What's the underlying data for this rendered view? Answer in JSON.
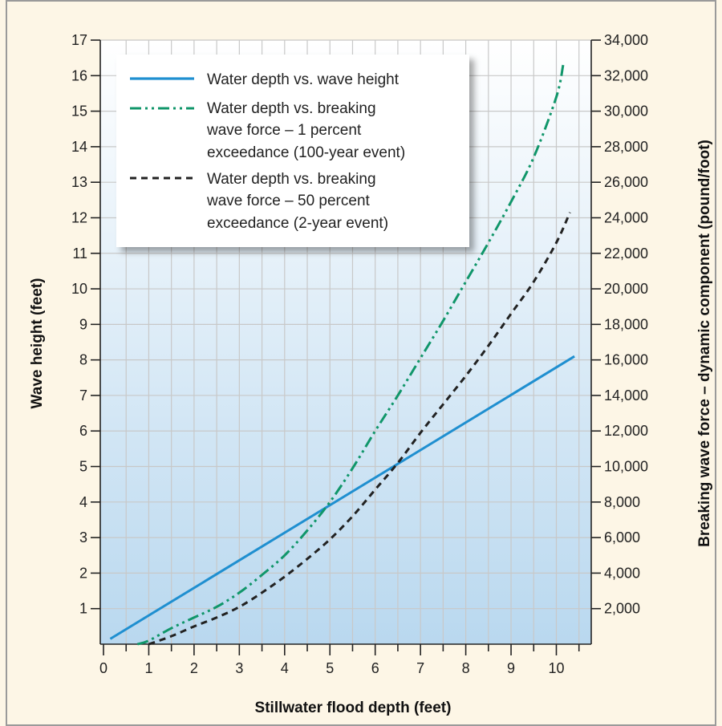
{
  "chart_data": {
    "type": "line",
    "xlabel": "Stillwater flood depth (feet)",
    "ylabel_left": "Wave height (feet)",
    "ylabel_right": "Breaking wave force – dynamic component (pound/foot)",
    "xlim": [
      0,
      10.7
    ],
    "ylim_left": [
      0,
      17
    ],
    "ylim_right": [
      0,
      34000
    ],
    "x_ticks": [
      "0",
      "1",
      "2",
      "3",
      "4",
      "5",
      "6",
      "7",
      "8",
      "9",
      "10"
    ],
    "y_left_ticks": [
      "1",
      "2",
      "3",
      "4",
      "5",
      "6",
      "7",
      "8",
      "9",
      "10",
      "11",
      "12",
      "13",
      "14",
      "15",
      "16",
      "17"
    ],
    "y_right_ticks": [
      "2,000",
      "4,000",
      "6,000",
      "8,000",
      "10,000",
      "12,000",
      "14,000",
      "16,000",
      "18,000",
      "20,000",
      "22,000",
      "24,000",
      "26,000",
      "28,000",
      "30,000",
      "32,000",
      "34,000"
    ],
    "grid": true,
    "legend_position": "top-left",
    "series": [
      {
        "name": "Water depth vs. wave height",
        "axis": "left",
        "style": "solid",
        "color": "#1f8fd0",
        "x": [
          0.15,
          10.4
        ],
        "y": [
          0.15,
          8.1
        ]
      },
      {
        "name_lines": [
          "Water depth vs. breaking",
          "wave force – 1 percent",
          "exceedance (100-year event)"
        ],
        "axis": "right",
        "style": "dash-dot-dot",
        "color": "#10966a",
        "x": [
          0.75,
          1.0,
          1.5,
          2.0,
          2.5,
          3.0,
          3.5,
          4.0,
          4.5,
          5.0,
          5.5,
          6.0,
          6.5,
          7.0,
          7.5,
          8.0,
          8.5,
          9.0,
          9.5,
          10.0,
          10.15
        ],
        "y": [
          0,
          200,
          900,
          1500,
          2100,
          2900,
          3900,
          5000,
          6400,
          8000,
          9900,
          12000,
          14000,
          16100,
          18200,
          20400,
          22600,
          24900,
          27400,
          30800,
          32600
        ]
      },
      {
        "name_lines": [
          "Water depth vs. breaking",
          "wave force – 50 percent",
          "exceedance (2-year event)"
        ],
        "axis": "right",
        "style": "dashed",
        "color": "#222222",
        "x": [
          1.0,
          1.5,
          2.0,
          2.5,
          3.0,
          3.5,
          4.0,
          4.5,
          5.0,
          5.5,
          6.0,
          6.5,
          7.0,
          7.5,
          8.0,
          8.5,
          9.0,
          9.5,
          10.0,
          10.3
        ],
        "y": [
          0,
          450,
          1000,
          1500,
          2100,
          2900,
          3800,
          4800,
          5900,
          7200,
          8700,
          10200,
          11900,
          13500,
          15100,
          16800,
          18600,
          20400,
          22600,
          24300
        ]
      }
    ]
  }
}
